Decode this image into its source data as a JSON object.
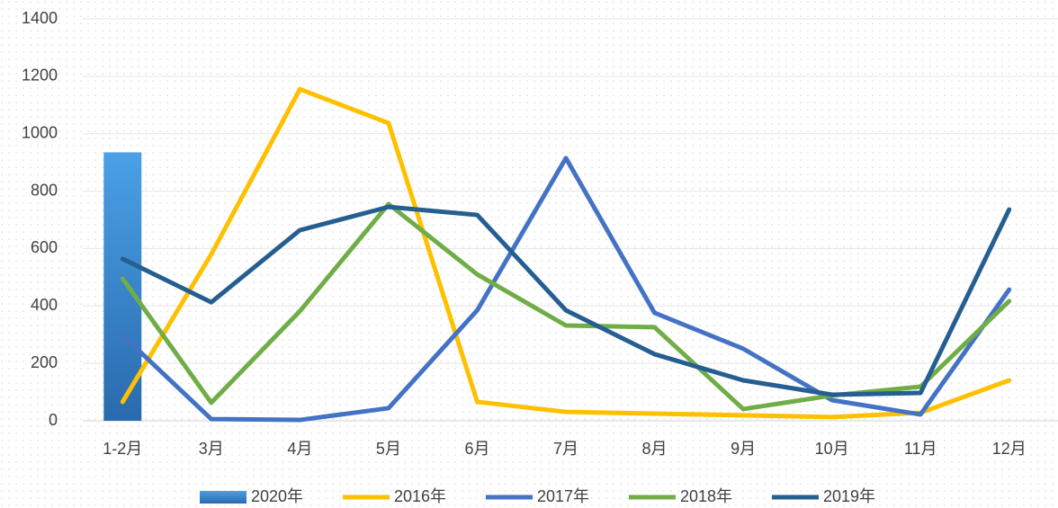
{
  "chart_data": {
    "type": "line",
    "categories": [
      "1-2月",
      "3月",
      "4月",
      "5月",
      "6月",
      "7月",
      "8月",
      "9月",
      "10月",
      "11月",
      "12月"
    ],
    "series": [
      {
        "name": "2020年",
        "type": "bar",
        "color": "#3a87d0",
        "values": [
          935,
          null,
          null,
          null,
          null,
          null,
          null,
          null,
          null,
          null,
          null
        ]
      },
      {
        "name": "2016年",
        "color": "#ffc000",
        "values": [
          66,
          580,
          1155,
          1037,
          66,
          31,
          25,
          19,
          13,
          28,
          141
        ]
      },
      {
        "name": "2017年",
        "color": "#4472c4",
        "values": [
          298,
          6,
          3,
          44,
          385,
          915,
          376,
          251,
          72,
          22,
          457
        ]
      },
      {
        "name": "2018年",
        "color": "#70ad47",
        "values": [
          495,
          63,
          382,
          755,
          510,
          332,
          326,
          41,
          88,
          119,
          417
        ]
      },
      {
        "name": "2019年",
        "color": "#255e91",
        "values": [
          564,
          413,
          664,
          745,
          717,
          385,
          232,
          141,
          91,
          97,
          736
        ]
      }
    ],
    "ylim": [
      0,
      1400
    ],
    "yticks": [
      0,
      200,
      400,
      600,
      800,
      1000,
      1200,
      1400
    ],
    "grid": true,
    "legend": "bottom"
  }
}
